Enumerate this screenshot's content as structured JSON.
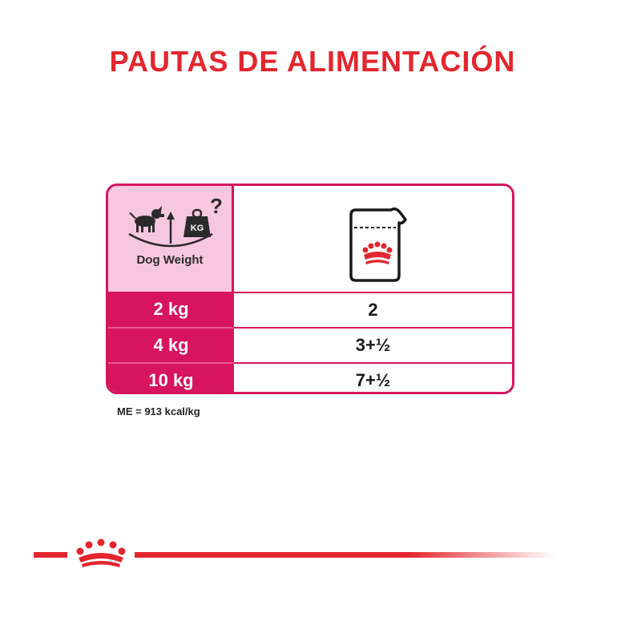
{
  "title": "PAUTAS DE ALIMENTACIÓN",
  "table": {
    "header_left_label": "Dog Weight",
    "rows": [
      {
        "weight": "2 kg",
        "amount": "2"
      },
      {
        "weight": "4 kg",
        "amount": "3+½"
      },
      {
        "weight": "10 kg",
        "amount": "7+½"
      }
    ],
    "weight_icon_text": "KG",
    "question_mark": "?"
  },
  "note": "ME = 913 kcal/kg",
  "colors": {
    "brand_red": "#e3262e",
    "table_magenta": "#d6145f",
    "header_pink": "#f7c6e0"
  },
  "icons": {
    "header_left": "dog-weight-scale-icon",
    "header_right": "food-pouch-icon",
    "footer": "royal-crown-logo"
  }
}
